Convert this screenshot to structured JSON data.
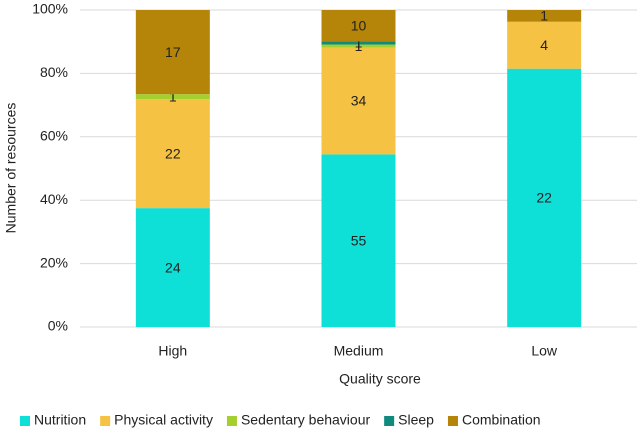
{
  "chart_data": {
    "type": "bar",
    "stacked": true,
    "normalize": true,
    "x_label": "Quality score",
    "y_label": "Number of resources",
    "categories": [
      "High",
      "Medium",
      "Low"
    ],
    "series": [
      {
        "name": "Nutrition",
        "color": "#0ee0d8",
        "values": [
          24,
          55,
          22
        ]
      },
      {
        "name": "Physical activity",
        "color": "#f5c243",
        "values": [
          22,
          34,
          4
        ]
      },
      {
        "name": "Sedentary behaviour",
        "color": "#a4cf2e",
        "values": [
          1,
          1,
          null
        ]
      },
      {
        "name": "Sleep",
        "color": "#10897f",
        "values": [
          null,
          1,
          null
        ]
      },
      {
        "name": "Combination",
        "color": "#b5850a",
        "values": [
          17,
          10,
          1
        ]
      }
    ],
    "ylim": [
      0,
      100
    ],
    "yticks": [
      {
        "value": 0,
        "label": "0%"
      },
      {
        "value": 20,
        "label": "20%"
      },
      {
        "value": 40,
        "label": "40%"
      },
      {
        "value": 60,
        "label": "60%"
      },
      {
        "value": 80,
        "label": "80%"
      },
      {
        "value": 100,
        "label": "100%"
      }
    ],
    "grid": true,
    "legend": "bottom"
  }
}
